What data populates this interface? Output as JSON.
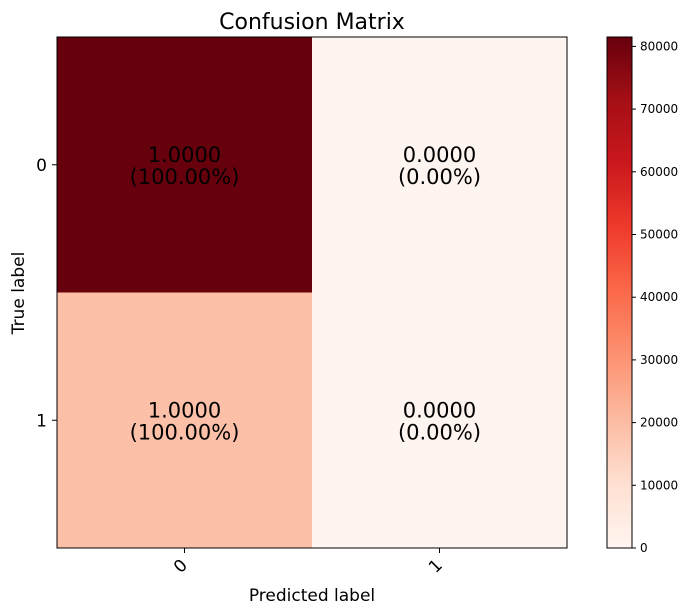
{
  "chart_data": {
    "type": "heatmap",
    "title": "Confusion Matrix",
    "xlabel": "Predicted label",
    "ylabel": "True label",
    "row_labels": [
      "0",
      "1"
    ],
    "col_labels": [
      "0",
      "1"
    ],
    "cells": [
      [
        {
          "color_value": 81500,
          "line1": "1.0000",
          "line2": "(100.00%)"
        },
        {
          "color_value": 0,
          "line1": "0.0000",
          "line2": "(0.00%)"
        }
      ],
      [
        {
          "color_value": 19000,
          "line1": "1.0000",
          "line2": "(100.00%)"
        },
        {
          "color_value": 0,
          "line1": "0.0000",
          "line2": "(0.00%)"
        }
      ]
    ],
    "colorbar": {
      "colormap": "Reds",
      "range": [
        0,
        81500
      ],
      "ticks": [
        0,
        10000,
        20000,
        30000,
        40000,
        50000,
        60000,
        70000,
        80000
      ]
    }
  }
}
